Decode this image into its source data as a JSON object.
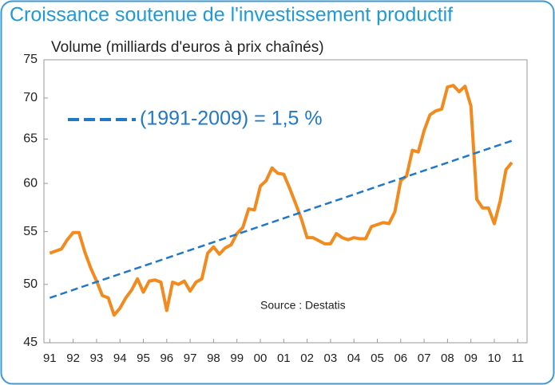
{
  "chart_data": {
    "type": "line",
    "title": "Croissance soutenue de l'investissement productif",
    "y_label": "Volume (milliards d'euros à prix chaînés)",
    "annotation": "Source : Destatis",
    "log_y": true,
    "legend": "upper left",
    "xlim": [
      1990.75,
      2011.4
    ],
    "ylim": [
      45,
      75
    ],
    "yticks": [
      45,
      50,
      55,
      60,
      65,
      70,
      75
    ],
    "xticks": [
      {
        "value": 1991,
        "label": "91"
      },
      {
        "value": 1992,
        "label": "92"
      },
      {
        "value": 1993,
        "label": "93"
      },
      {
        "value": 1994,
        "label": "94"
      },
      {
        "value": 1995,
        "label": "95"
      },
      {
        "value": 1996,
        "label": "96"
      },
      {
        "value": 1997,
        "label": "97"
      },
      {
        "value": 1998,
        "label": "98"
      },
      {
        "value": 1999,
        "label": "99"
      },
      {
        "value": 2000,
        "label": "00"
      },
      {
        "value": 2001,
        "label": "01"
      },
      {
        "value": 2002,
        "label": "02"
      },
      {
        "value": 2003,
        "label": "03"
      },
      {
        "value": 2004,
        "label": "04"
      },
      {
        "value": 2005,
        "label": "05"
      },
      {
        "value": 2006,
        "label": "06"
      },
      {
        "value": 2007,
        "label": "07"
      },
      {
        "value": 2008,
        "label": "08"
      },
      {
        "value": 2009,
        "label": "09"
      },
      {
        "value": 2010,
        "label": "10"
      },
      {
        "value": 2011,
        "label": "11"
      }
    ],
    "series": [
      {
        "color": "#f28a1e",
        "dashed": false,
        "x": [
          1991,
          1991.25,
          1991.5,
          1991.75,
          1992,
          1992.25,
          1992.5,
          1992.75,
          1993,
          1993.25,
          1993.5,
          1993.75,
          1994,
          1994.25,
          1994.5,
          1994.75,
          1995,
          1995.25,
          1995.5,
          1995.75,
          1996,
          1996.25,
          1996.5,
          1996.75,
          1997,
          1997.25,
          1997.5,
          1997.75,
          1998,
          1998.25,
          1998.5,
          1998.75,
          1999,
          1999.25,
          1999.5,
          1999.75,
          2000,
          2000.25,
          2000.5,
          2000.75,
          2001,
          2001.25,
          2001.5,
          2001.75,
          2002,
          2002.25,
          2002.5,
          2002.75,
          2003,
          2003.25,
          2003.5,
          2003.75,
          2004,
          2004.25,
          2004.5,
          2004.75,
          2005,
          2005.25,
          2005.5,
          2005.75,
          2006,
          2006.25,
          2006.5,
          2006.75,
          2007,
          2007.25,
          2007.5,
          2007.75,
          2008,
          2008.25,
          2008.5,
          2008.75,
          2009,
          2009.25,
          2009.5,
          2009.75,
          2010,
          2010.25,
          2010.5,
          2010.75
        ],
        "values": [
          52.9,
          53.1,
          53.3,
          54.2,
          54.9,
          54.9,
          53.0,
          51.5,
          50.3,
          49.0,
          48.8,
          47.3,
          47.9,
          48.8,
          49.5,
          50.5,
          49.3,
          50.3,
          50.4,
          50.2,
          47.7,
          50.2,
          50.0,
          50.3,
          49.4,
          50.2,
          50.5,
          52.9,
          53.5,
          52.8,
          53.4,
          53.7,
          54.8,
          55.4,
          57.3,
          57.2,
          59.7,
          60.3,
          61.7,
          61.1,
          61.0,
          59.5,
          57.9,
          56.3,
          54.4,
          54.4,
          54.1,
          53.8,
          53.8,
          54.8,
          54.4,
          54.2,
          54.4,
          54.3,
          54.3,
          55.5,
          55.7,
          55.9,
          55.8,
          57.0,
          60.3,
          60.8,
          63.7,
          63.5,
          66.0,
          67.9,
          68.4,
          68.6,
          71.4,
          71.6,
          70.8,
          71.5,
          69.0,
          58.3,
          57.4,
          57.4,
          55.8,
          58.1,
          61.5,
          62.3
        ]
      },
      {
        "name": "(1991-2009) = 1,5 %",
        "color": "#1f78c8",
        "dashed": true,
        "x": [
          1991,
          2010.75
        ],
        "values": [
          48.8,
          64.8
        ]
      }
    ]
  }
}
